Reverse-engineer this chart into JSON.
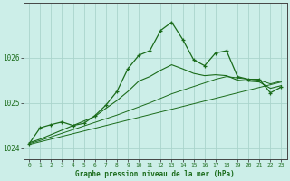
{
  "title": "Graphe pression niveau de la mer (hPa)",
  "background_color": "#cceee8",
  "grid_color": "#aad4cc",
  "line_color": "#1a6b1a",
  "xlim": [
    -0.5,
    23.5
  ],
  "ylim": [
    1023.75,
    1027.2
  ],
  "yticks": [
    1024,
    1025,
    1026
  ],
  "xticks": [
    0,
    1,
    2,
    3,
    4,
    5,
    6,
    7,
    8,
    9,
    10,
    11,
    12,
    13,
    14,
    15,
    16,
    17,
    18,
    19,
    20,
    21,
    22,
    23
  ],
  "main_series": [
    1024.1,
    1024.45,
    1024.52,
    1024.58,
    1024.5,
    1024.55,
    1024.72,
    1024.95,
    1025.25,
    1025.75,
    1026.05,
    1026.15,
    1026.6,
    1026.78,
    1026.4,
    1025.95,
    1025.82,
    1026.1,
    1026.15,
    1025.58,
    1025.52,
    1025.52,
    1025.22,
    1025.35
  ],
  "trend1": [
    1024.08,
    1024.14,
    1024.2,
    1024.26,
    1024.32,
    1024.38,
    1024.44,
    1024.5,
    1024.56,
    1024.62,
    1024.68,
    1024.74,
    1024.8,
    1024.86,
    1024.92,
    1024.98,
    1025.04,
    1025.1,
    1025.16,
    1025.22,
    1025.28,
    1025.34,
    1025.4,
    1025.46
  ],
  "trend2": [
    1024.1,
    1024.17,
    1024.25,
    1024.33,
    1024.41,
    1024.49,
    1024.57,
    1024.65,
    1024.73,
    1024.82,
    1024.91,
    1025.0,
    1025.1,
    1025.2,
    1025.28,
    1025.36,
    1025.44,
    1025.52,
    1025.58,
    1025.55,
    1025.52,
    1025.5,
    1025.42,
    1025.48
  ],
  "trend3": [
    1024.12,
    1024.2,
    1024.3,
    1024.4,
    1024.5,
    1024.6,
    1024.7,
    1024.88,
    1025.05,
    1025.25,
    1025.48,
    1025.58,
    1025.72,
    1025.84,
    1025.75,
    1025.65,
    1025.6,
    1025.62,
    1025.6,
    1025.5,
    1025.48,
    1025.46,
    1025.32,
    1025.38
  ]
}
